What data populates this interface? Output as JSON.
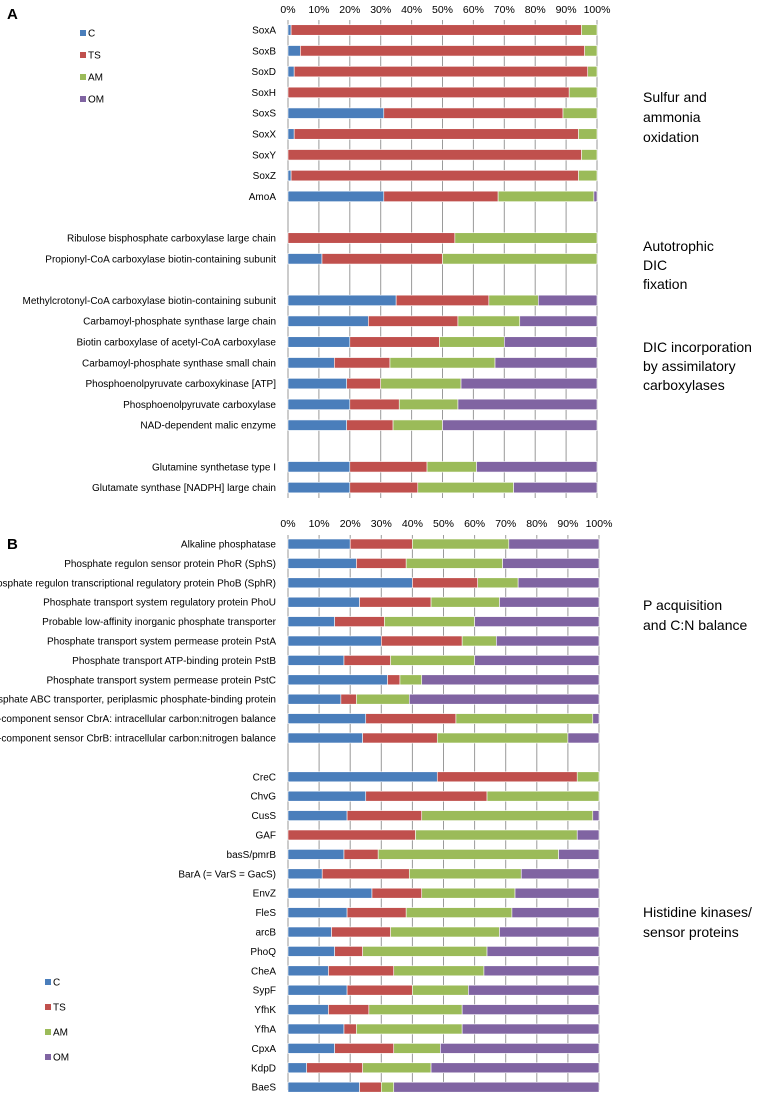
{
  "chart_data": [
    {
      "type": "bar",
      "orientation": "horizontal",
      "stacked": "percent",
      "panel_label": "A",
      "xlim": [
        0,
        100
      ],
      "tick_labels": [
        "0%",
        "10%",
        "20%",
        "30%",
        "40%",
        "50%",
        "60%",
        "70%",
        "80%",
        "90%",
        "100%"
      ],
      "legend": [
        {
          "name": "C",
          "color": "#4a7ebb"
        },
        {
          "name": "TS",
          "color": "#c0504d"
        },
        {
          "name": "AM",
          "color": "#9bbb59"
        },
        {
          "name": "OM",
          "color": "#8064a2"
        }
      ],
      "legend_position": "top-left",
      "group_labels": [
        {
          "lines": [
            "Sulfur and",
            "ammonia",
            "oxidation"
          ]
        },
        {
          "lines": [
            "Autotrophic",
            "DIC",
            "fixation"
          ]
        },
        {
          "lines": [
            "DIC incorporation",
            "by assimilatory",
            "carboxylases"
          ]
        }
      ],
      "categories": [
        "SoxA",
        "SoxB",
        "SoxD",
        "SoxH",
        "SoxS",
        "SoxX",
        "SoxY",
        "SoxZ",
        "AmoA",
        "",
        "Ribulose bisphosphate carboxylase large chain",
        "Propionyl-CoA carboxylase biotin-containing subunit",
        "",
        "Methylcrotonyl-CoA carboxylase biotin-containing subunit",
        "Carbamoyl-phosphate synthase large chain",
        "Biotin carboxylase of acetyl-CoA carboxylase",
        "Carbamoyl-phosphate synthase small chain",
        "Phosphoenolpyruvate carboxykinase [ATP]",
        "Phosphoenolpyruvate carboxylase",
        "NAD-dependent malic enzyme",
        "",
        "Glutamine synthetase type I",
        "Glutamate synthase [NADPH] large chain"
      ],
      "series": [
        {
          "name": "C",
          "values": [
            1,
            4,
            2,
            0,
            31,
            2,
            0,
            1,
            31,
            null,
            0,
            11,
            null,
            35,
            26,
            20,
            15,
            19,
            20,
            19,
            null,
            20,
            20
          ]
        },
        {
          "name": "TS",
          "values": [
            94,
            92,
            95,
            91,
            58,
            92,
            95,
            93,
            37,
            null,
            54,
            39,
            null,
            30,
            29,
            29,
            18,
            11,
            16,
            15,
            null,
            25,
            22
          ]
        },
        {
          "name": "AM",
          "values": [
            5,
            4,
            3,
            9,
            11,
            6,
            5,
            6,
            31,
            null,
            46,
            50,
            null,
            16,
            20,
            21,
            34,
            26,
            19,
            16,
            null,
            16,
            31
          ]
        },
        {
          "name": "OM",
          "values": [
            0,
            0,
            0,
            0,
            0,
            0,
            0,
            0,
            1,
            null,
            0,
            0,
            null,
            19,
            25,
            30,
            33,
            44,
            45,
            50,
            null,
            39,
            27
          ]
        }
      ]
    },
    {
      "type": "bar",
      "orientation": "horizontal",
      "stacked": "percent",
      "panel_label": "B",
      "xlim": [
        0,
        100
      ],
      "tick_labels": [
        "0%",
        "10%",
        "20%",
        "30%",
        "40%",
        "50%",
        "60%",
        "70%",
        "80%",
        "90%",
        "100%"
      ],
      "legend": [
        {
          "name": "C",
          "color": "#4a7ebb"
        },
        {
          "name": "TS",
          "color": "#c0504d"
        },
        {
          "name": "AM",
          "color": "#9bbb59"
        },
        {
          "name": "OM",
          "color": "#8064a2"
        }
      ],
      "legend_position": "bottom-left",
      "group_labels": [
        {
          "lines": [
            "P acquisition",
            "and C:N balance"
          ]
        },
        {
          "lines": [
            "Histidine kinases/",
            "sensor proteins"
          ]
        }
      ],
      "categories": [
        "Alkaline phosphatase",
        "Phosphate regulon sensor protein PhoR (SphS)",
        "Phosphate regulon transcriptional regulatory protein PhoB (SphR)",
        "Phosphate transport system regulatory protein PhoU",
        "Probable low-affinity inorganic phosphate transporter",
        "Phosphate transport system permease protein PstA",
        "Phosphate transport ATP-binding protein PstB",
        "Phosphate transport system permease protein PstC",
        "Phosphate ABC transporter, periplasmic phosphate-binding protein",
        "Two-component sensor CbrA: intracellular carbon:nitrogen balance",
        "Two-component sensor CbrB: intracellular carbon:nitrogen balance",
        "",
        "CreC",
        "ChvG",
        "CusS",
        "GAF",
        "basS/pmrB",
        "BarA (= VarS = GacS)",
        "EnvZ",
        "FleS",
        "arcB",
        "PhoQ",
        "CheA",
        "SypF",
        "YfhK",
        "YfhA",
        "CpxA",
        "KdpD",
        "BaeS"
      ],
      "series": [
        {
          "name": "C",
          "values": [
            20,
            22,
            40,
            23,
            15,
            30,
            18,
            32,
            17,
            25,
            24,
            null,
            48,
            25,
            19,
            0,
            18,
            11,
            27,
            19,
            14,
            15,
            13,
            19,
            13,
            18,
            15,
            6,
            23
          ]
        },
        {
          "name": "TS",
          "values": [
            20,
            16,
            21,
            23,
            16,
            26,
            15,
            4,
            5,
            29,
            24,
            null,
            45,
            39,
            24,
            41,
            11,
            28,
            16,
            19,
            19,
            9,
            21,
            21,
            13,
            4,
            19,
            18,
            7
          ]
        },
        {
          "name": "AM",
          "values": [
            31,
            31,
            13,
            22,
            29,
            11,
            27,
            7,
            17,
            44,
            42,
            null,
            7,
            36,
            55,
            52,
            58,
            36,
            30,
            34,
            35,
            40,
            29,
            18,
            30,
            34,
            15,
            22,
            4
          ]
        },
        {
          "name": "OM",
          "values": [
            29,
            31,
            26,
            32,
            40,
            33,
            40,
            57,
            61,
            2,
            10,
            null,
            0,
            0,
            2,
            7,
            13,
            25,
            27,
            28,
            32,
            36,
            37,
            42,
            44,
            44,
            51,
            54,
            66
          ]
        }
      ]
    }
  ]
}
